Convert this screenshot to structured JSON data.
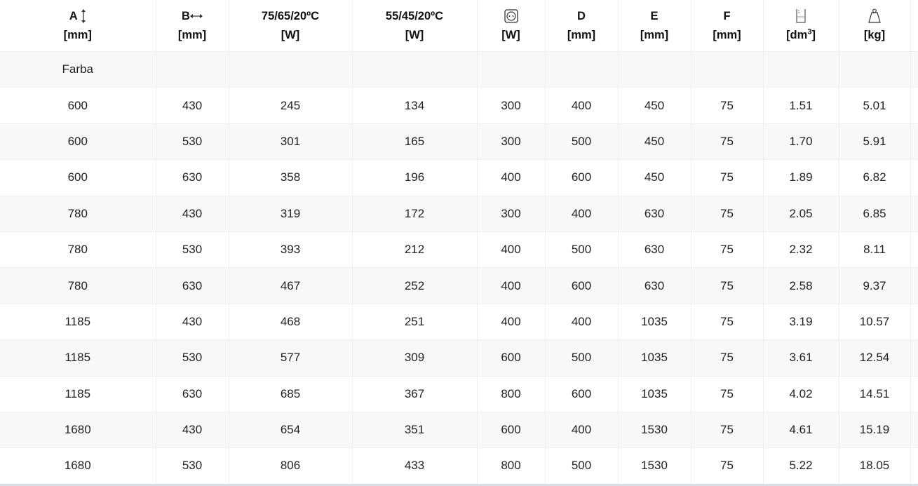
{
  "headers": [
    {
      "l1": "A",
      "icon": "vertical-arrow-icon",
      "l2": "[mm]"
    },
    {
      "l1": "B",
      "icon": "horizontal-arrow-icon",
      "l2": "[mm]"
    },
    {
      "l1": "75/65/20ºC",
      "l2": "[W]"
    },
    {
      "l1": "55/45/20ºC",
      "l2": "[W]"
    },
    {
      "l1": "",
      "icon": "electric-socket-icon",
      "l2": "[W]"
    },
    {
      "l1": "D",
      "l2": "[mm]"
    },
    {
      "l1": "E",
      "l2": "[mm]"
    },
    {
      "l1": "F",
      "l2": "[mm]"
    },
    {
      "l1": "",
      "icon": "water-volume-icon",
      "l2": "[dm",
      "l2sup": "3",
      "l2end": "]"
    },
    {
      "l1": "",
      "icon": "weight-icon",
      "l2": "[kg]"
    }
  ],
  "group_label": "Farba",
  "rows": [
    [
      "600",
      "430",
      "245",
      "134",
      "300",
      "400",
      "450",
      "75",
      "1.51",
      "5.01"
    ],
    [
      "600",
      "530",
      "301",
      "165",
      "300",
      "500",
      "450",
      "75",
      "1.70",
      "5.91"
    ],
    [
      "600",
      "630",
      "358",
      "196",
      "400",
      "600",
      "450",
      "75",
      "1.89",
      "6.82"
    ],
    [
      "780",
      "430",
      "319",
      "172",
      "300",
      "400",
      "630",
      "75",
      "2.05",
      "6.85"
    ],
    [
      "780",
      "530",
      "393",
      "212",
      "400",
      "500",
      "630",
      "75",
      "2.32",
      "8.11"
    ],
    [
      "780",
      "630",
      "467",
      "252",
      "400",
      "600",
      "630",
      "75",
      "2.58",
      "9.37"
    ],
    [
      "1185",
      "430",
      "468",
      "251",
      "400",
      "400",
      "1035",
      "75",
      "3.19",
      "10.57"
    ],
    [
      "1185",
      "530",
      "577",
      "309",
      "600",
      "500",
      "1035",
      "75",
      "3.61",
      "12.54"
    ],
    [
      "1185",
      "630",
      "685",
      "367",
      "800",
      "600",
      "1035",
      "75",
      "4.02",
      "14.51"
    ],
    [
      "1680",
      "430",
      "654",
      "351",
      "600",
      "400",
      "1530",
      "75",
      "4.61",
      "15.19"
    ],
    [
      "1680",
      "530",
      "806",
      "433",
      "800",
      "500",
      "1530",
      "75",
      "5.22",
      "18.05"
    ]
  ]
}
